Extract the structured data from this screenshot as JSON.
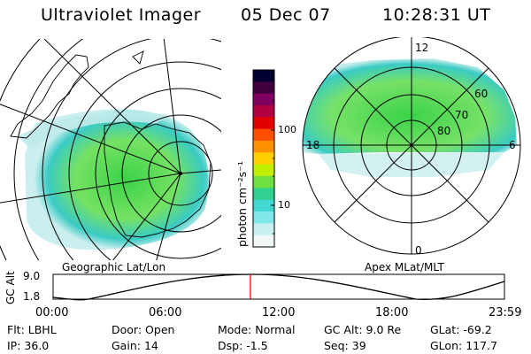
{
  "header": {
    "title": "Ultraviolet Imager",
    "date": "05 Dec 07",
    "time": "10:28:31 UT"
  },
  "left_panel": {
    "label": "Geographic Lat/Lon"
  },
  "right_panel": {
    "label": "Apex MLat/MLT",
    "mlt_labels": {
      "top": "12",
      "bottom": "0",
      "left": "18",
      "right": "6"
    },
    "mlat_labels": [
      "60",
      "70",
      "80"
    ]
  },
  "colorbar": {
    "unit_label": "photon cm⁻²s⁻¹",
    "tick_labels": [
      "100",
      "10"
    ],
    "colors": [
      "#000030",
      "#400040",
      "#800060",
      "#b00040",
      "#e00000",
      "#ff5000",
      "#ff9000",
      "#ffd000",
      "#c0f000",
      "#70e040",
      "#30d090",
      "#40d8d0",
      "#80e8e8",
      "#c8f0f0",
      "#f0f8f8"
    ]
  },
  "altitude_plot": {
    "ylabel": "GC Alt",
    "y_ticks": [
      "9.0",
      "1.8"
    ],
    "x_ticks": [
      "00:00",
      "06:00",
      "12:00",
      "18:00",
      "23:59"
    ],
    "current_time_color": "#ff0000"
  },
  "footer": {
    "row1": [
      {
        "key": "Flt:",
        "value": "LBHL"
      },
      {
        "key": "Door:",
        "value": "Open"
      },
      {
        "key": "Mode:",
        "value": "Normal"
      },
      {
        "key": "GC Alt:",
        "value": "9.0 Re"
      },
      {
        "key": "GLat:",
        "value": "-69.2"
      }
    ],
    "row2": [
      {
        "key": "IP:",
        "value": "36.0"
      },
      {
        "key": "Gain:",
        "value": "14"
      },
      {
        "key": "Dsp:",
        "value": "-1.5"
      },
      {
        "key": "Seq:",
        "value": "39"
      },
      {
        "key": "GLon:",
        "value": "117.7"
      }
    ]
  }
}
